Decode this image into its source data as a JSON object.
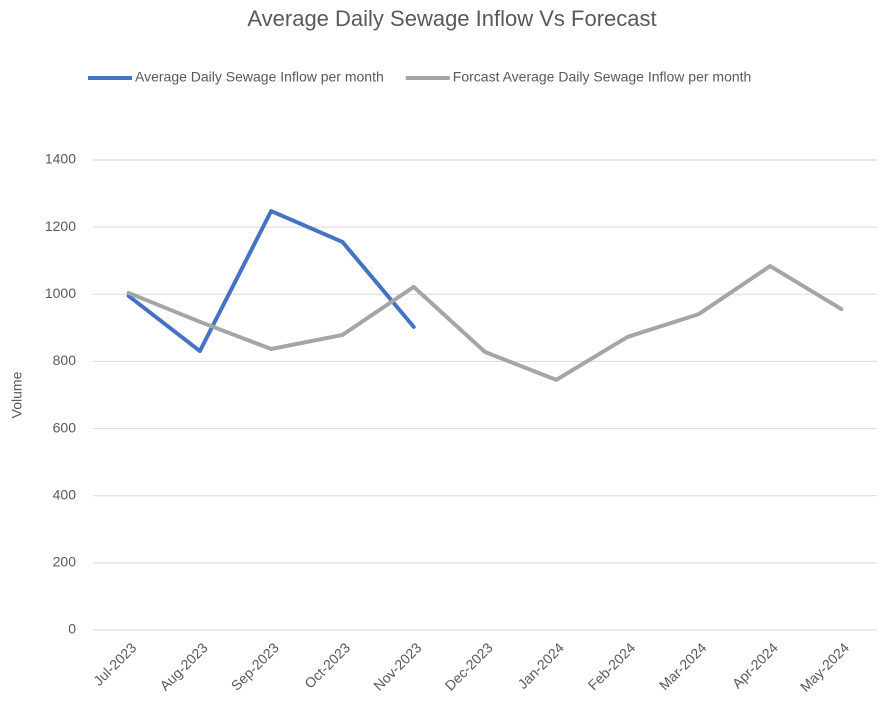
{
  "chart_data": {
    "type": "line",
    "title": "Average Daily Sewage Inflow Vs Forecast",
    "y_label": "Volume",
    "categories": [
      "Jul-2023",
      "Aug-2023",
      "Sep-2023",
      "Oct-2023",
      "Nov-2023",
      "Dec-2023",
      "Jan-2024",
      "Feb-2024",
      "Mar-2024",
      "Apr-2024",
      "May-2024"
    ],
    "series": [
      {
        "name": "Average Daily Sewage Inflow per month",
        "color": "#4472c4",
        "values": [
          995,
          831,
          1248,
          1156,
          903,
          null,
          null,
          null,
          null,
          null,
          null
        ]
      },
      {
        "name": "Forcast Average Daily Sewage Inflow per month",
        "color": "#a5a5a5",
        "values": [
          1004,
          918,
          837,
          879,
          1022,
          828,
          745,
          873,
          941,
          1084,
          956
        ]
      }
    ],
    "ylim": [
      0,
      1400
    ],
    "yticks": [
      0,
      200,
      400,
      600,
      800,
      1000,
      1200,
      1400
    ],
    "grid": true,
    "legend": "top"
  }
}
